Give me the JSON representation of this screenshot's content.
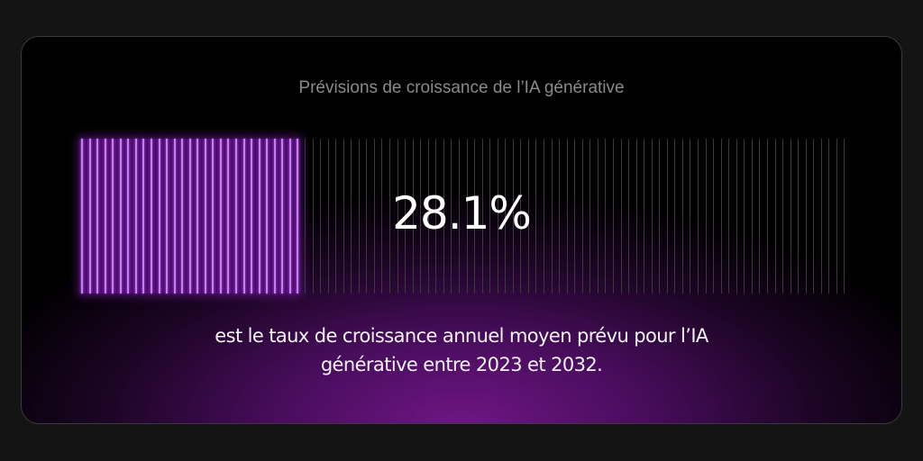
{
  "title": "Prévisions de croissance de l’IA générative",
  "stat": {
    "value_label": "28.1%",
    "progress_percent": 28.1
  },
  "caption": {
    "line1": "est le taux de croissance annuel moyen prévu pour l’IA",
    "line2": "générative entre 2023 et 2032."
  },
  "colors": {
    "accent": "#c77cf0",
    "glow": "#6e1684",
    "background": "#000000"
  }
}
